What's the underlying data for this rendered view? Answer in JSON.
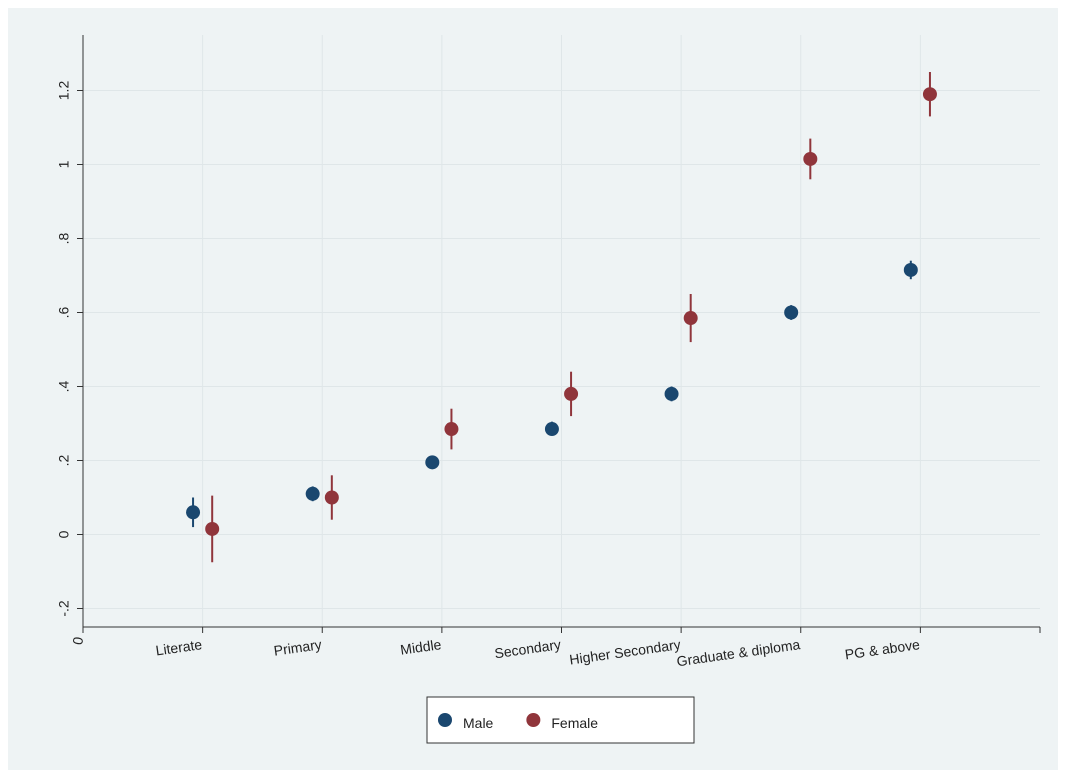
{
  "chart_data": {
    "type": "scatter",
    "categories": [
      "Literate",
      "Primary",
      "Middle",
      "Secondary",
      "Higher Secondary",
      "Graduate & diploma",
      "PG & above"
    ],
    "series": [
      {
        "name": "Male",
        "color": "#1a476f",
        "values": [
          0.06,
          0.11,
          0.195,
          0.285,
          0.38,
          0.6,
          0.715
        ],
        "lower": [
          0.02,
          0.09,
          0.18,
          0.27,
          0.36,
          0.58,
          0.69
        ],
        "upper": [
          0.1,
          0.13,
          0.21,
          0.305,
          0.4,
          0.62,
          0.74
        ]
      },
      {
        "name": "Female",
        "color": "#90353b",
        "values": [
          0.015,
          0.1,
          0.285,
          0.38,
          0.585,
          1.015,
          1.19
        ],
        "lower": [
          -0.075,
          0.04,
          0.23,
          0.32,
          0.52,
          0.96,
          1.13
        ],
        "upper": [
          0.105,
          0.16,
          0.34,
          0.44,
          0.65,
          1.07,
          1.25
        ]
      }
    ],
    "xlim": [
      0,
      8
    ],
    "xticks": [
      0
    ],
    "ylim": [
      -0.25,
      1.35
    ],
    "yticks": [
      {
        "value": -0.2,
        "label": "-.2"
      },
      0,
      {
        "value": 0.2,
        "label": ".2"
      },
      {
        "value": 0.4,
        "label": ".4"
      },
      {
        "value": 0.6,
        "label": ".6"
      },
      {
        "value": 0.8,
        "label": ".8"
      },
      1,
      {
        "value": 1.2,
        "label": "1.2"
      }
    ],
    "grid": true,
    "legend": "bottom"
  }
}
